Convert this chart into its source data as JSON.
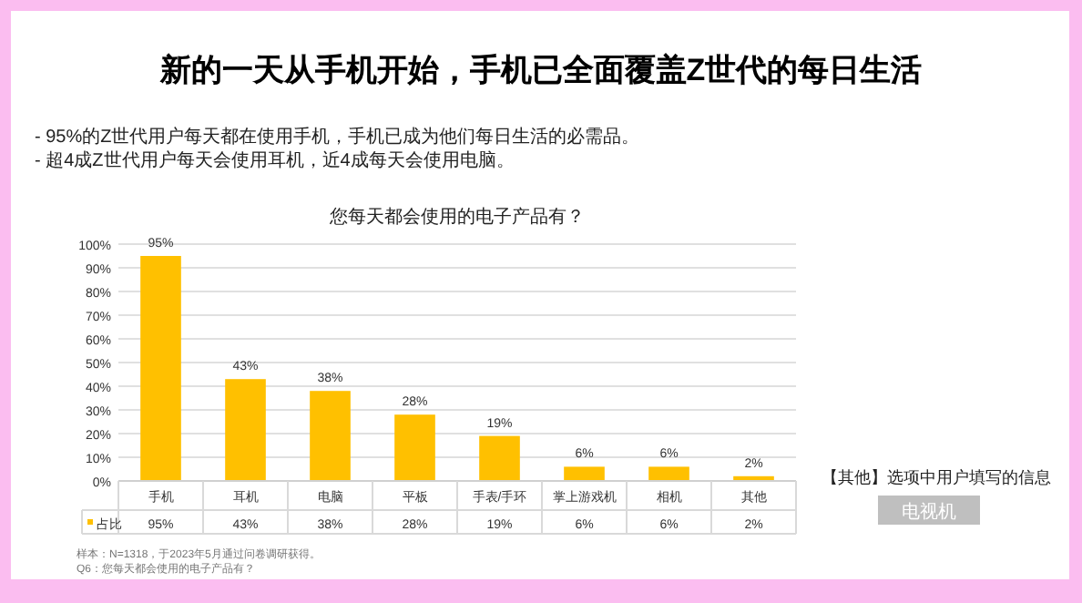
{
  "chart_data": {
    "type": "bar",
    "title": "新的一天从手机开始，手机已全面覆盖Z世代的每日生活",
    "subtitle": "您每天都会使用的电子产品有？",
    "annotations": [
      "-    95%的Z世代用户每天都在使用手机，手机已成为他们每日生活的必需品。",
      "-    超4成Z世代用户每天会使用耳机，近4成每天会使用电脑。",
      "【其他】选项中用户填写的信息",
      "电视机",
      "样本：N=1318，于2023年5月通过问卷调研获得。",
      "Q6：您每天都会使用的电子产品有？"
    ],
    "categories": [
      "手机",
      "耳机",
      "电脑",
      "平板",
      "手表/手环",
      "掌上游戏机",
      "相机",
      "其他"
    ],
    "series": [
      {
        "name": "占比",
        "color": "#ffc000",
        "values": [
          95,
          43,
          38,
          28,
          19,
          6,
          6,
          2
        ],
        "value_labels": [
          "95%",
          "43%",
          "38%",
          "28%",
          "19%",
          "6%",
          "6%",
          "2%"
        ]
      }
    ],
    "ylim": [
      0,
      100
    ],
    "yticks": [
      {
        "value": 0,
        "label": "0%"
      },
      {
        "value": 10,
        "label": "10%"
      },
      {
        "value": 20,
        "label": "20%"
      },
      {
        "value": 30,
        "label": "30%"
      },
      {
        "value": 40,
        "label": "40%"
      },
      {
        "value": 50,
        "label": "50%"
      },
      {
        "value": 60,
        "label": "60%"
      },
      {
        "value": 70,
        "label": "70%"
      },
      {
        "value": 80,
        "label": "80%"
      },
      {
        "value": 90,
        "label": "90%"
      },
      {
        "value": 100,
        "label": "100%"
      }
    ],
    "grid": "y",
    "legend": "bottom left"
  }
}
